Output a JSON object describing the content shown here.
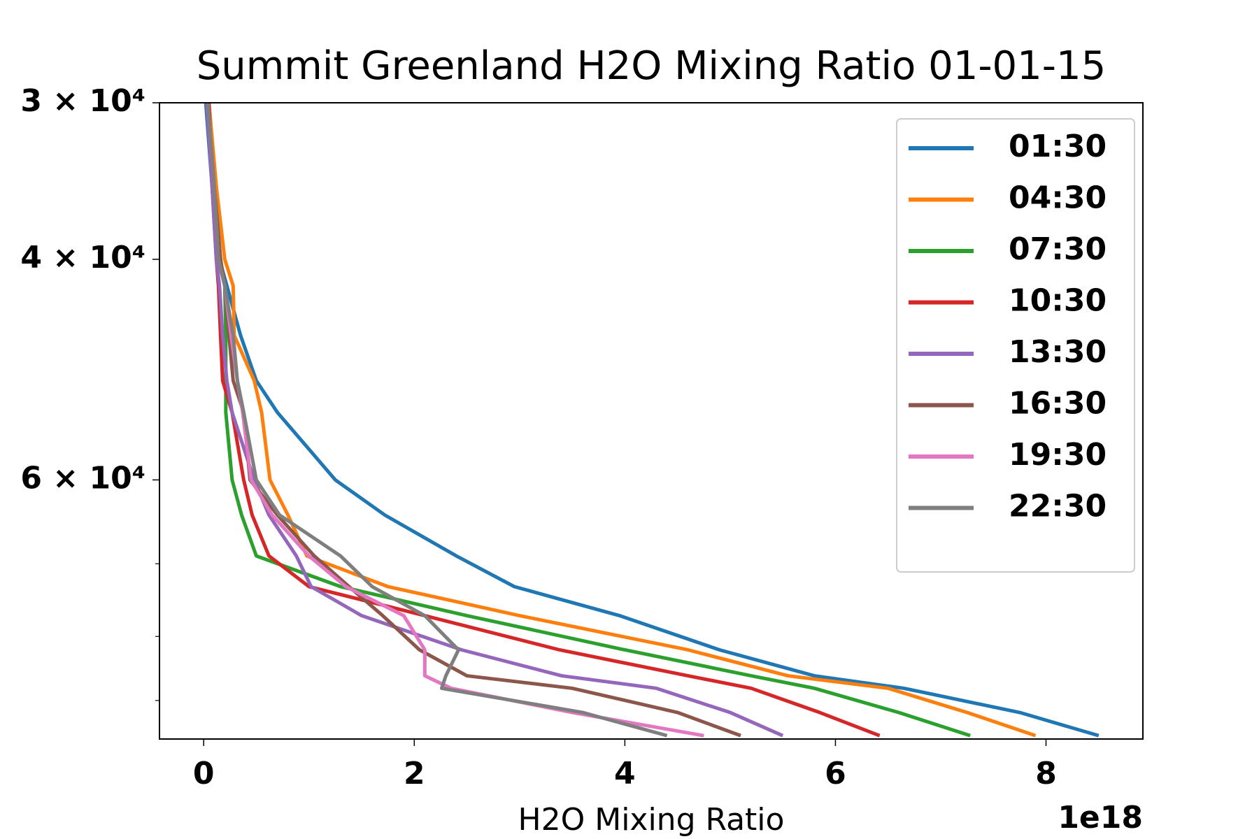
{
  "chart_data": {
    "type": "line",
    "title": "Summit Greenland H2O Mixing Ratio 01-01-15",
    "x_label": "H2O Mixing Ratio",
    "x_offset_label": "1e18",
    "y": [
      30000,
      35000,
      40000,
      42000,
      46000,
      50000,
      53000,
      60000,
      64000,
      69000,
      73000,
      77000,
      82000,
      86000,
      88000,
      92000,
      96000
    ],
    "series": [
      {
        "name": "01:30",
        "color": "#1f77b4",
        "values": [
          0.02,
          0.08,
          0.15,
          0.22,
          0.35,
          0.5,
          0.7,
          1.25,
          1.72,
          2.4,
          2.95,
          3.95,
          4.9,
          5.8,
          6.65,
          7.75,
          8.5
        ]
      },
      {
        "name": "04:30",
        "color": "#ff7f0e",
        "values": [
          0.05,
          0.12,
          0.2,
          0.28,
          0.29,
          0.48,
          0.55,
          0.63,
          0.8,
          0.98,
          1.75,
          3.0,
          4.6,
          5.55,
          6.5,
          7.25,
          7.9
        ]
      },
      {
        "name": "07:30",
        "color": "#2ca02c",
        "values": [
          0.04,
          0.1,
          0.16,
          0.2,
          0.21,
          0.21,
          0.21,
          0.27,
          0.36,
          0.5,
          1.3,
          2.5,
          4.0,
          5.2,
          5.8,
          6.6,
          7.28
        ]
      },
      {
        "name": "10:30",
        "color": "#d62728",
        "values": [
          0.05,
          0.08,
          0.12,
          0.14,
          0.16,
          0.18,
          0.27,
          0.38,
          0.46,
          0.62,
          1.0,
          2.1,
          3.38,
          4.6,
          5.2,
          5.85,
          6.42
        ]
      },
      {
        "name": "13:30",
        "color": "#9467bd",
        "values": [
          0.03,
          0.08,
          0.12,
          0.15,
          0.18,
          0.22,
          0.27,
          0.48,
          0.62,
          0.88,
          1.02,
          1.5,
          2.45,
          3.4,
          4.3,
          5.0,
          5.5
        ]
      },
      {
        "name": "16:30",
        "color": "#8c564b",
        "values": [
          0.04,
          0.1,
          0.16,
          0.2,
          0.24,
          0.28,
          0.38,
          0.44,
          0.7,
          1.05,
          1.38,
          1.7,
          2.05,
          2.5,
          3.5,
          4.5,
          5.1
        ]
      },
      {
        "name": "19:30",
        "color": "#e377c2",
        "values": [
          0.04,
          0.1,
          0.14,
          0.2,
          0.26,
          0.32,
          0.37,
          0.45,
          0.65,
          1.0,
          1.35,
          1.9,
          2.1,
          2.1,
          2.35,
          3.5,
          4.75
        ]
      },
      {
        "name": "22:30",
        "color": "#7f7f7f",
        "values": [
          0.04,
          0.1,
          0.14,
          0.2,
          0.28,
          0.32,
          0.38,
          0.5,
          0.72,
          1.3,
          1.6,
          2.1,
          2.42,
          2.3,
          2.26,
          3.6,
          4.4
        ]
      }
    ],
    "xlim": [
      -0.42,
      8.92
    ],
    "xticks": [
      0,
      2,
      4,
      6,
      8
    ],
    "ylim": [
      96600,
      30000
    ],
    "y_log": true,
    "yticks": [
      {
        "value": 30000,
        "label": "3 × 10⁴"
      },
      {
        "value": 40000,
        "label": "4 × 10⁴"
      },
      {
        "value": 60000,
        "label": "6 × 10⁴"
      }
    ],
    "y_minor_ticks": [
      70000,
      80000,
      90000
    ],
    "legend": "upper right",
    "grid": false
  }
}
